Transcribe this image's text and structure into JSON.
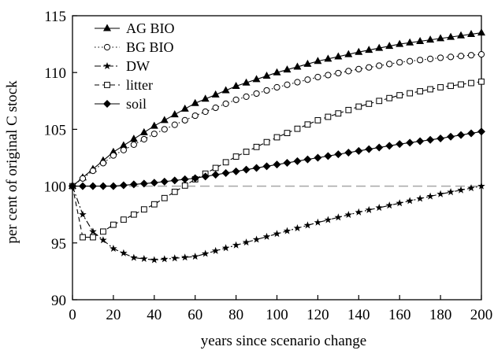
{
  "chart_data": {
    "type": "line",
    "title": "",
    "xlabel": "years since scenario change",
    "ylabel": "per cent of original C stock",
    "xlim": [
      0,
      200
    ],
    "ylim": [
      90,
      115
    ],
    "xticks": [
      0,
      20,
      40,
      60,
      80,
      100,
      120,
      140,
      160,
      180,
      200
    ],
    "yticks": [
      90,
      95,
      100,
      105,
      110,
      115
    ],
    "grid": false,
    "legend_position": "top-left",
    "reference_line": {
      "y": 100,
      "style": "dashed",
      "color": "#a6a6a6"
    },
    "series": [
      {
        "name": "AG BIO",
        "marker": "triangle",
        "line": "solid",
        "x": [
          0,
          20,
          40,
          60,
          80,
          100,
          120,
          140,
          160,
          180,
          200
        ],
        "y": [
          100,
          103.0,
          105.3,
          107.3,
          108.8,
          110.0,
          111.0,
          111.8,
          112.5,
          113.0,
          113.5
        ]
      },
      {
        "name": "BG BIO",
        "marker": "circle-open",
        "line": "dotted",
        "x": [
          0,
          20,
          40,
          60,
          80,
          100,
          120,
          140,
          160,
          180,
          200
        ],
        "y": [
          100,
          102.7,
          104.6,
          106.2,
          107.6,
          108.7,
          109.6,
          110.3,
          110.9,
          111.3,
          111.6
        ]
      },
      {
        "name": "DW",
        "marker": "star",
        "line": "dash-dot",
        "x": [
          0,
          5,
          10,
          20,
          30,
          40,
          60,
          80,
          100,
          120,
          140,
          160,
          180,
          200
        ],
        "y": [
          100,
          97.5,
          96.0,
          94.5,
          93.7,
          93.5,
          93.8,
          94.8,
          95.8,
          96.8,
          97.7,
          98.5,
          99.3,
          100.0
        ]
      },
      {
        "name": "litter",
        "marker": "square-open",
        "line": "dashed",
        "x": [
          0,
          5,
          10,
          15,
          20,
          40,
          60,
          80,
          100,
          120,
          140,
          160,
          180,
          200
        ],
        "y": [
          100,
          95.5,
          95.5,
          96.0,
          96.6,
          98.4,
          100.6,
          102.6,
          104.3,
          105.8,
          107.0,
          108.0,
          108.7,
          109.2
        ]
      },
      {
        "name": "soil",
        "marker": "diamond",
        "line": "solid",
        "x": [
          0,
          20,
          40,
          60,
          80,
          100,
          120,
          140,
          160,
          180,
          200
        ],
        "y": [
          100,
          100.0,
          100.3,
          100.7,
          101.3,
          101.9,
          102.5,
          103.1,
          103.7,
          104.2,
          104.8
        ]
      }
    ]
  }
}
